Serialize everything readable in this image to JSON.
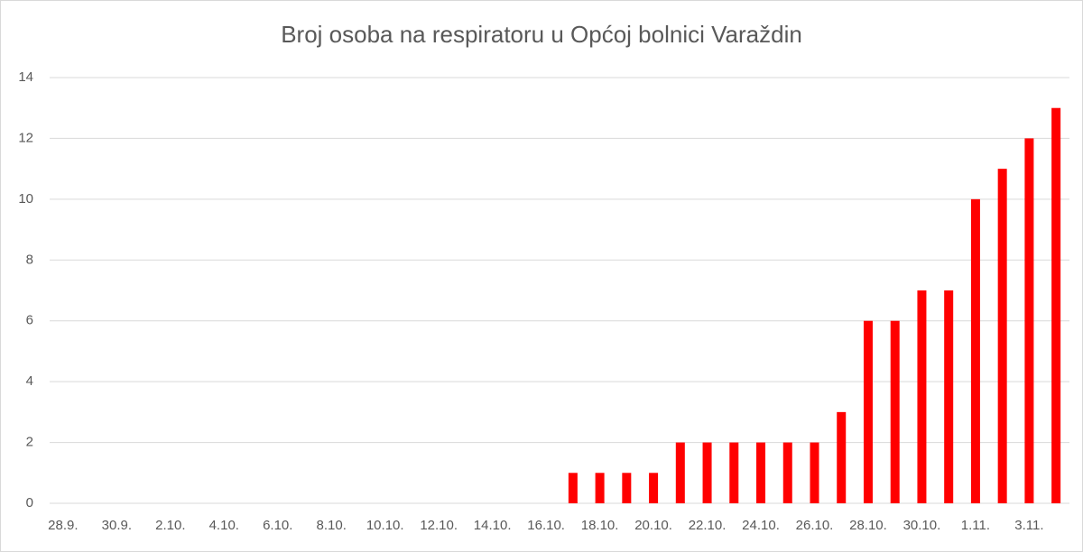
{
  "chart_data": {
    "type": "bar",
    "title": "Broj osoba na respiratoru u Općoj bolnici Varaždin",
    "categories": [
      "28.9.",
      null,
      "30.9.",
      null,
      "2.10.",
      null,
      "4.10.",
      null,
      "6.10.",
      null,
      "8.10.",
      null,
      "10.10.",
      null,
      "12.10.",
      null,
      "14.10.",
      null,
      "16.10.",
      null,
      "18.10.",
      null,
      "20.10.",
      null,
      "22.10.",
      null,
      "24.10.",
      null,
      "26.10.",
      null,
      "28.10.",
      null,
      "30.10.",
      null,
      "1.11.",
      null,
      "3.11.",
      null
    ],
    "values": [
      0,
      0,
      0,
      0,
      0,
      0,
      0,
      0,
      0,
      0,
      0,
      0,
      0,
      0,
      0,
      0,
      0,
      0,
      0,
      1,
      1,
      1,
      1,
      2,
      2,
      2,
      2,
      2,
      2,
      3,
      6,
      6,
      7,
      7,
      10,
      11,
      12,
      13
    ],
    "color": "#ff0000",
    "ylim": [
      0,
      14
    ],
    "yticks": [
      0,
      2,
      4,
      6,
      8,
      10,
      12,
      14
    ],
    "grid": true
  }
}
